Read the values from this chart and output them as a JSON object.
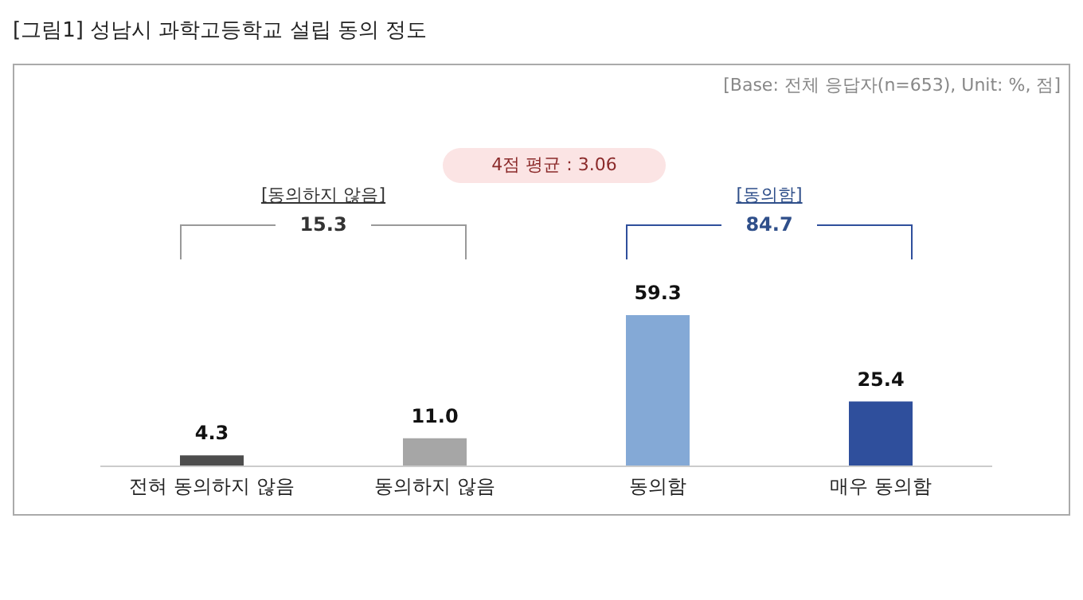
{
  "chart_data": {
    "type": "bar",
    "title": "[그림1] 성남시 과학고등학교 설립 동의 정도",
    "categories": [
      "전혀 동의하지 않음",
      "동의하지 않음",
      "동의함",
      "매우 동의함"
    ],
    "values": [
      4.3,
      11.0,
      59.3,
      25.4
    ],
    "colors": [
      "#4d4d4d",
      "#a6a6a6",
      "#84a9d6",
      "#2f4f9c"
    ],
    "value_labels": [
      "4.3",
      "11.0",
      "59.3",
      "25.4"
    ],
    "annotations": [
      "[Base: 전체 응답자(n=653), Unit: %, 점]",
      "4점 평균 : 3.06",
      "[동의하지 않음]",
      "15.3",
      "[동의함]",
      "84.7"
    ]
  }
}
